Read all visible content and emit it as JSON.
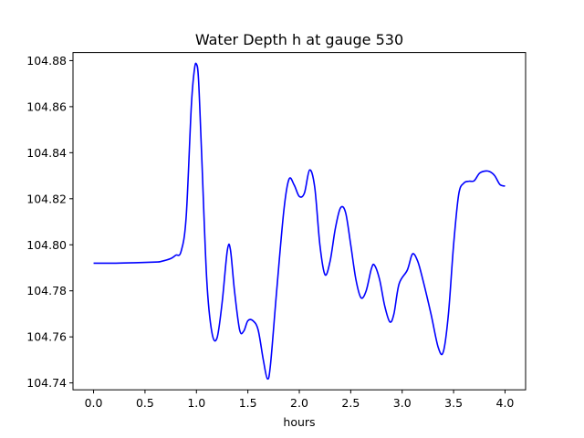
{
  "chart_data": {
    "type": "line",
    "title": "Water Depth h at gauge 530",
    "xlabel": "hours",
    "ylabel": "",
    "xlim": [
      -0.2,
      4.2
    ],
    "ylim": [
      104.737,
      104.8835
    ],
    "xticks": [
      0.0,
      0.5,
      1.0,
      1.5,
      2.0,
      2.5,
      3.0,
      3.5,
      4.0
    ],
    "xtick_labels": [
      "0.0",
      "0.5",
      "1.0",
      "1.5",
      "2.0",
      "2.5",
      "3.0",
      "3.5",
      "4.0"
    ],
    "yticks": [
      104.74,
      104.76,
      104.78,
      104.8,
      104.82,
      104.84,
      104.86,
      104.88
    ],
    "ytick_labels": [
      "104.74",
      "104.76",
      "104.78",
      "104.80",
      "104.82",
      "104.84",
      "104.86",
      "104.88"
    ],
    "grid": false,
    "series": [
      {
        "color": "#0000ff",
        "x": [
          0.0,
          0.2,
          0.4,
          0.6,
          0.65,
          0.75,
          0.8,
          0.85,
          0.9,
          0.95,
          0.98,
          1.0,
          1.02,
          1.05,
          1.1,
          1.15,
          1.2,
          1.25,
          1.3,
          1.33,
          1.37,
          1.42,
          1.46,
          1.5,
          1.55,
          1.6,
          1.65,
          1.69,
          1.72,
          1.78,
          1.85,
          1.9,
          1.95,
          2.0,
          2.05,
          2.1,
          2.15,
          2.2,
          2.25,
          2.3,
          2.35,
          2.4,
          2.45,
          2.5,
          2.55,
          2.6,
          2.65,
          2.7,
          2.73,
          2.78,
          2.83,
          2.88,
          2.92,
          2.97,
          3.05,
          3.1,
          3.15,
          3.2,
          3.28,
          3.35,
          3.4,
          3.45,
          3.5,
          3.55,
          3.6,
          3.65,
          3.7,
          3.75,
          3.8,
          3.85,
          3.9,
          3.95,
          4.0
        ],
        "y": [
          104.792,
          104.792,
          104.7922,
          104.7925,
          104.7927,
          104.794,
          104.7955,
          104.797,
          104.812,
          104.86,
          104.876,
          104.8785,
          104.872,
          104.84,
          104.785,
          104.762,
          104.7595,
          104.775,
          104.7975,
          104.798,
          104.78,
          104.763,
          104.7625,
          104.767,
          104.767,
          104.763,
          104.75,
          104.7418,
          104.748,
          104.78,
          104.815,
          104.8285,
          104.826,
          104.821,
          104.8225,
          104.8325,
          104.825,
          104.8,
          104.787,
          104.793,
          104.807,
          104.816,
          104.814,
          104.8,
          104.785,
          104.777,
          104.78,
          104.7895,
          104.7912,
          104.785,
          104.7735,
          104.7665,
          104.77,
          104.783,
          104.789,
          104.796,
          104.793,
          104.785,
          104.77,
          104.7555,
          104.7535,
          104.77,
          104.8,
          104.822,
          104.8268,
          104.8276,
          104.8278,
          104.831,
          104.832,
          104.8318,
          104.83,
          104.8262,
          104.8255
        ]
      }
    ]
  }
}
